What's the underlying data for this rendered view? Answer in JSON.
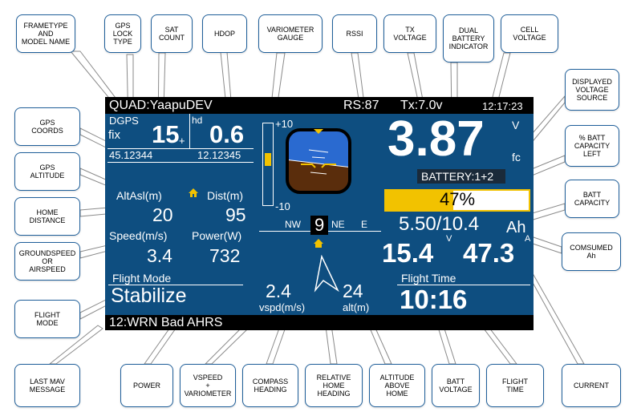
{
  "osd": {
    "frame_model": "QUAD:YaapuDEV",
    "rssi": "RS:87",
    "tx_voltage": "Tx:7.0v",
    "time": "12:17:23",
    "gps_type_label": "DGPS",
    "gps_fix": "fix",
    "sat_count": "15",
    "sat_plus": "+",
    "hdop_label": "hd",
    "hdop_value": "0.6",
    "lat": "45.12344",
    "lon": "12.12345",
    "vario_max": "+10",
    "vario_min": "-10",
    "cell_voltage": "3.87",
    "cell_unit": "V",
    "voltage_source": "fc",
    "battery_indicator": "BATTERY:1+2",
    "battery_percent": "47%",
    "battery_percent_value": 47,
    "capacity": "5.50/10.4",
    "capacity_unit": "Ah",
    "alt_label": "AltAsl(m)",
    "dist_label": "Dist(m)",
    "alt_value": "20",
    "dist_value": "95",
    "speed_label": "Speed(m/s)",
    "power_label": "Power(W)",
    "speed_value": "3.4",
    "power_value": "732",
    "compass_nw": "NW",
    "compass_heading": "9",
    "compass_ne": "NE",
    "compass_e": "E",
    "batt_voltage": "15.4",
    "batt_voltage_unit": "V",
    "current": "47.3",
    "current_unit": "A",
    "flight_mode_label": "Flight Mode",
    "flight_mode": "Stabilize",
    "vspeed_value": "2.4",
    "vspeed_label": "vspd(m/s)",
    "home_alt_value": "24",
    "home_alt_label": "alt(m)",
    "flight_time_label": "Flight Time",
    "flight_time": "10:16",
    "message": "12:WRN Bad AHRS"
  },
  "callouts": {
    "frametype": "FRAMETYPE\nAND\nMODEL NAME",
    "gps_lock": "GPS\nLOCK\nTYPE",
    "sat_count": "SAT\nCOUNT",
    "hdop": "HDOP",
    "variometer": "VARIOMETER\nGAUGE",
    "rssi": "RSSI",
    "tx_voltage": "TX\nVOLTAGE",
    "dual_battery": "DUAL\nBATTERY\nINDICATOR",
    "cell_voltage": "CELL\nVOLTAGE",
    "voltage_source": "DISPLAYED\nVOLTAGE\nSOURCE",
    "batt_capacity_left": "% BATT\nCAPACITY\nLEFT",
    "batt_capacity": "BATT\nCAPACITY",
    "consumed": "COMSUMED\nAh",
    "gps_coords": "GPS\nCOORDS",
    "gps_altitude": "GPS\nALTITUDE",
    "home_distance": "HOME\nDISTANCE",
    "groundspeed": "GROUNDSPEED\nOR\nAIRSPEED",
    "flight_mode": "FLIGHT\nMODE",
    "last_mav": "LAST MAV\nMESSAGE",
    "power": "POWER",
    "vspeed": "VSPEED\n+\nVARIOMETER",
    "compass": "COMPASS\nHEADING",
    "relative_home": "RELATIVE\nHOME\nHEADING",
    "altitude_home": "ALTITUDE\nABOVE\nHOME",
    "batt_voltage": "BATT\nVOLTAGE",
    "flight_time": "FLIGHT\nTIME",
    "current": "CURRENT"
  },
  "colors": {
    "osd_background": "#0e4e80",
    "accent_yellow": "#f2c200",
    "sky": "#2a6ad0",
    "ground": "#5a2d0c",
    "callout_border": "#1f5f9a"
  }
}
